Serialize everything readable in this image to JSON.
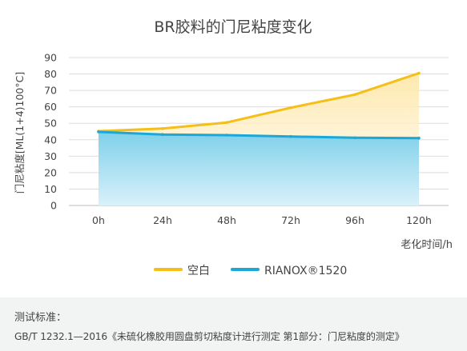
{
  "chart_data": {
    "type": "area",
    "title": "BR胶料的门尼粘度变化",
    "xlabel": "老化时间/h",
    "ylabel": "门尼粘度[ML(1+4)100°C]",
    "categories": [
      "0h",
      "24h",
      "48h",
      "72h",
      "96h",
      "120h"
    ],
    "yticks": [
      0,
      10,
      20,
      30,
      40,
      50,
      60,
      70,
      80,
      90
    ],
    "ylim": [
      0,
      90
    ],
    "grid": true,
    "legend_position": "bottom",
    "series": [
      {
        "name": "空白",
        "values": [
          45.2,
          46.8,
          50.5,
          59.5,
          67.5,
          80.5
        ],
        "color": "#f5bf17"
      },
      {
        "name": "RIANOX®1520",
        "values": [
          44.8,
          43.2,
          42.8,
          42.0,
          41.2,
          41.0
        ],
        "color": "#1ba8d6"
      }
    ]
  },
  "footer": {
    "label": "测试标准：",
    "standard": "GB/T 1232.1—2016《未硫化橡胶用圆盘剪切粘度计进行测定 第1部分：门尼粘度的测定》"
  }
}
